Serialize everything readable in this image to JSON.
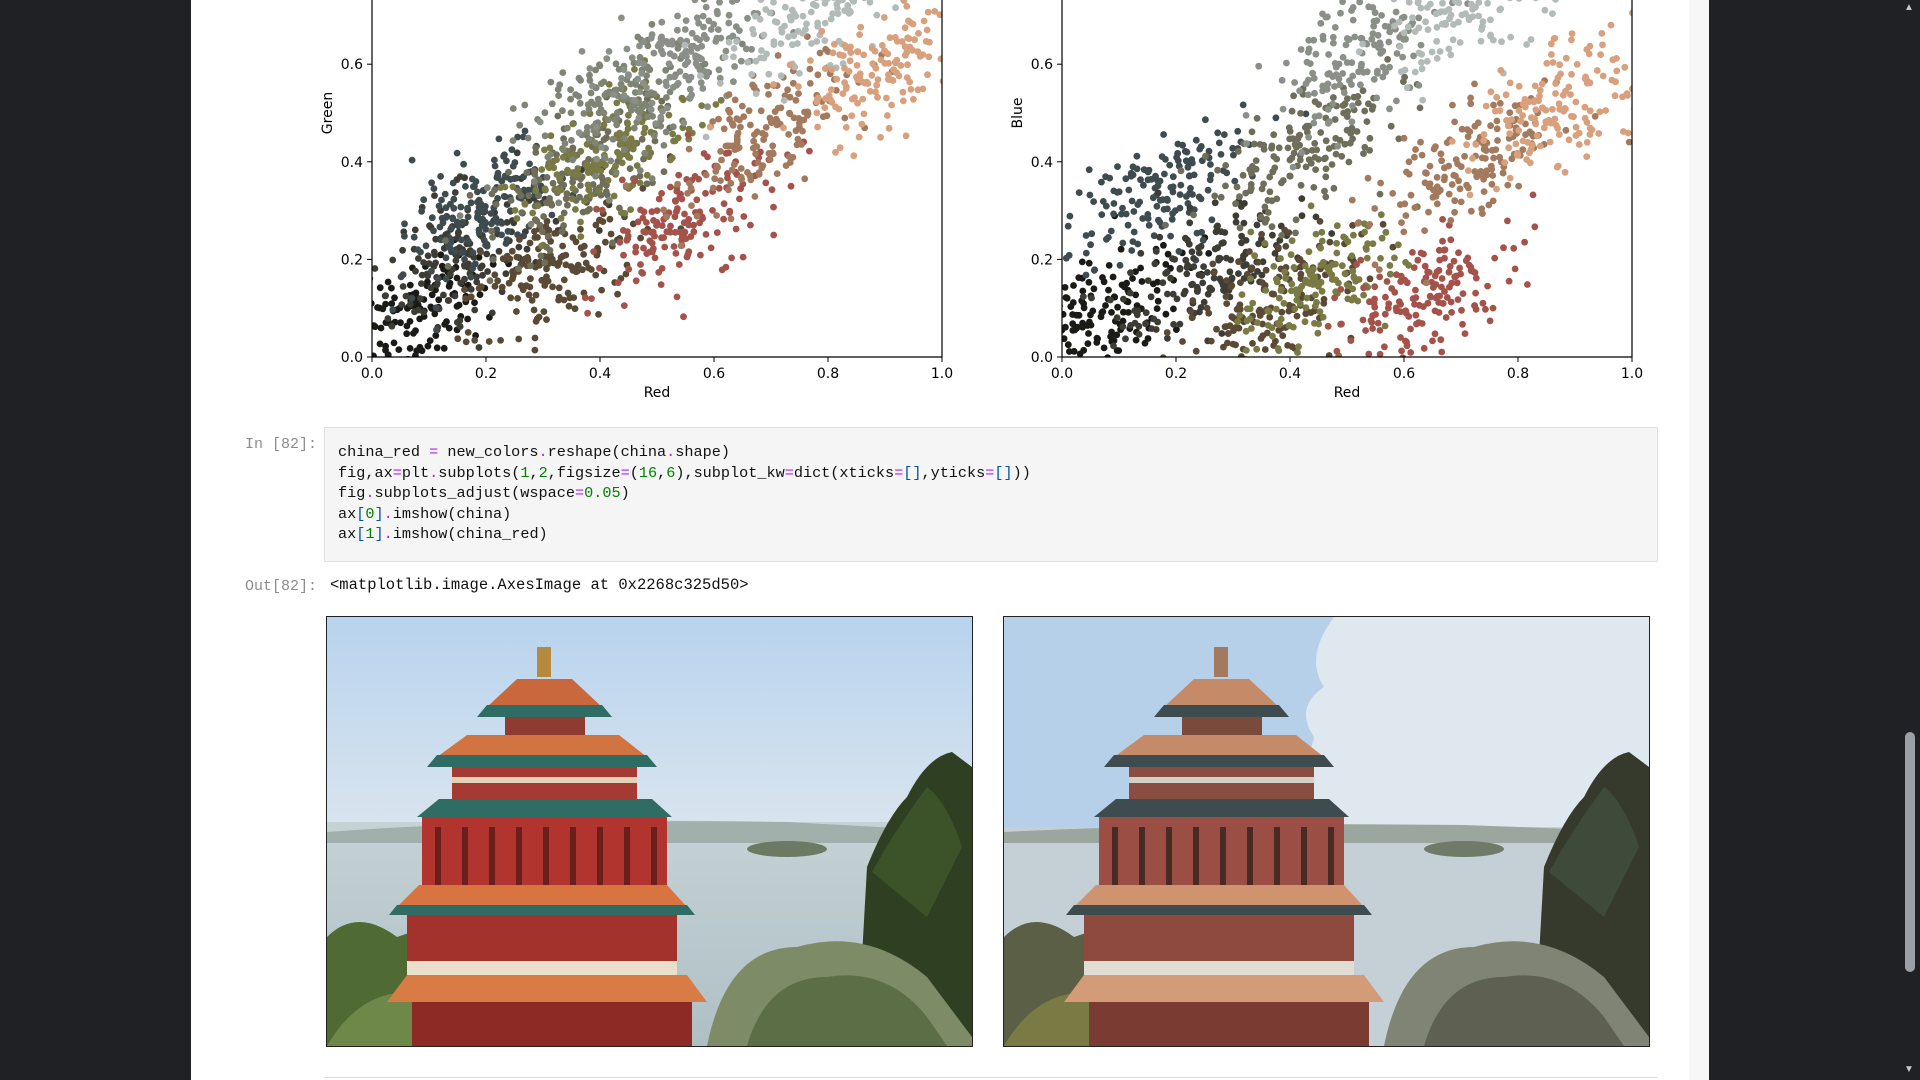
{
  "notebook": {
    "scatter_plots": [
      {
        "xlabel": "Red",
        "ylabel": "Green",
        "x_ticks": [
          "0.0",
          "0.2",
          "0.4",
          "0.6",
          "0.8",
          "1.0"
        ],
        "y_ticks": [
          "0.0",
          "0.2",
          "0.4",
          "0.6"
        ]
      },
      {
        "xlabel": "Red",
        "ylabel": "Blue",
        "x_ticks": [
          "0.0",
          "0.2",
          "0.4",
          "0.6",
          "0.8",
          "1.0"
        ],
        "y_ticks": [
          "0.0",
          "0.2",
          "0.4",
          "0.6"
        ]
      }
    ],
    "cell_in": {
      "prompt": "In [82]:",
      "lines": [
        "china_red = new_colors.reshape(china.shape)",
        "fig,ax=plt.subplots(1,2,figsize=(16,6),subplot_kw=dict(xticks=[],yticks=[]))",
        "fig.subplots_adjust(wspace=0.05)",
        "ax[0].imshow(china)",
        "ax[1].imshow(china_red)"
      ]
    },
    "cell_out": {
      "prompt": "Out[82]:",
      "text": "<matplotlib.image.AxesImage at 0x2268c325d50>"
    }
  },
  "chart_data": [
    {
      "type": "scatter",
      "xlabel": "Red",
      "ylabel": "Green",
      "xlim": [
        0,
        1
      ],
      "ylim": [
        0,
        0.75
      ],
      "grid": false,
      "clusters": [
        {
          "color": "#1a1a17",
          "x": 0.07,
          "y": 0.08
        },
        {
          "color": "#3d3d35",
          "x": 0.16,
          "y": 0.22
        },
        {
          "color": "#3e4b4f",
          "x": 0.2,
          "y": 0.3
        },
        {
          "color": "#5a4a35",
          "x": 0.32,
          "y": 0.18
        },
        {
          "color": "#6e6e5a",
          "x": 0.35,
          "y": 0.36
        },
        {
          "color": "#7a7a45",
          "x": 0.42,
          "y": 0.42
        },
        {
          "color": "#7f8475",
          "x": 0.43,
          "y": 0.52
        },
        {
          "color": "#a5524a",
          "x": 0.55,
          "y": 0.28
        },
        {
          "color": "#8a8f88",
          "x": 0.55,
          "y": 0.62
        },
        {
          "color": "#a37a5e",
          "x": 0.68,
          "y": 0.45
        },
        {
          "color": "#b3bbb8",
          "x": 0.78,
          "y": 0.72
        },
        {
          "color": "#d8a07c",
          "x": 0.9,
          "y": 0.6
        }
      ]
    },
    {
      "type": "scatter",
      "xlabel": "Red",
      "ylabel": "Blue",
      "xlim": [
        0,
        1
      ],
      "ylim": [
        0,
        0.75
      ],
      "grid": false,
      "clusters": [
        {
          "color": "#1a1a17",
          "x": 0.06,
          "y": 0.08
        },
        {
          "color": "#3e4b4f",
          "x": 0.16,
          "y": 0.33
        },
        {
          "color": "#3d3d35",
          "x": 0.25,
          "y": 0.17
        },
        {
          "color": "#5a4a35",
          "x": 0.37,
          "y": 0.12
        },
        {
          "color": "#6e6e5a",
          "x": 0.42,
          "y": 0.42
        },
        {
          "color": "#7a7a45",
          "x": 0.46,
          "y": 0.15
        },
        {
          "color": "#a5524a",
          "x": 0.63,
          "y": 0.12
        },
        {
          "color": "#8a8f88",
          "x": 0.52,
          "y": 0.62
        },
        {
          "color": "#a37a5e",
          "x": 0.72,
          "y": 0.4
        },
        {
          "color": "#b3bbb8",
          "x": 0.72,
          "y": 0.72
        },
        {
          "color": "#d8a07c",
          "x": 0.88,
          "y": 0.52
        }
      ]
    }
  ],
  "scrollbar": {
    "up_arrow": "▲",
    "down_arrow": "▼"
  }
}
